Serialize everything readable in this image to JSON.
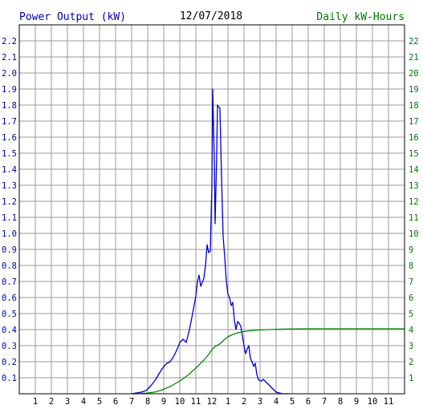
{
  "header": {
    "left_title": "Power Output (kW)",
    "center_title": "12/07/2018",
    "right_title": "Daily kW-Hours"
  },
  "colors": {
    "power": "#0000cc",
    "energy": "#008800",
    "grid": "#999999",
    "axis_text_left": "#0000aa",
    "axis_text_right": "#007700",
    "center_text": "#000000"
  },
  "chart_data": {
    "type": "line",
    "title": "12/07/2018",
    "xlabel": "",
    "ylabel": "Power Output (kW)",
    "ylabel_right": "Daily kW-Hours",
    "x_ticks": [
      "1",
      "2",
      "3",
      "4",
      "5",
      "6",
      "7",
      "8",
      "9",
      "10",
      "11",
      "12",
      "1",
      "2",
      "3",
      "4",
      "5",
      "6",
      "7",
      "8",
      "9",
      "10",
      "11"
    ],
    "xlim": [
      0,
      24
    ],
    "ylim": [
      0,
      2.3
    ],
    "ylim_right": [
      0,
      23
    ],
    "y_ticks": [
      "0.1",
      "0.2",
      "0.3",
      "0.4",
      "0.5",
      "0.6",
      "0.7",
      "0.8",
      "0.9",
      "1.0",
      "1.1",
      "1.2",
      "1.3",
      "1.4",
      "1.5",
      "1.6",
      "1.7",
      "1.8",
      "1.9",
      "2.0",
      "2.1",
      "2.2"
    ],
    "y_ticks_right": [
      "1",
      "2",
      "3",
      "4",
      "5",
      "6",
      "7",
      "8",
      "9",
      "10",
      "11",
      "12",
      "13",
      "14",
      "15",
      "16",
      "17",
      "18",
      "19",
      "20",
      "21",
      "22"
    ],
    "grid": true,
    "series": [
      {
        "axis": "left",
        "x": [
          7.0,
          7.3,
          7.6,
          7.9,
          8.2,
          8.5,
          8.8,
          9.0,
          9.2,
          9.4,
          9.6,
          9.8,
          10.0,
          10.2,
          10.4,
          10.6,
          10.8,
          11.0,
          11.1,
          11.2,
          11.3,
          11.5,
          11.6,
          11.7,
          11.8,
          11.9,
          12.0,
          12.05,
          12.15,
          12.2,
          12.3,
          12.35,
          12.4,
          12.5,
          12.6,
          12.7,
          12.8,
          12.9,
          13.0,
          13.1,
          13.2,
          13.3,
          13.4,
          13.5,
          13.6,
          13.7,
          13.8,
          13.9,
          14.0,
          14.1,
          14.2,
          14.3,
          14.4,
          14.5,
          14.6,
          14.7,
          14.8,
          14.9,
          15.0,
          15.1,
          15.2,
          15.3,
          15.4,
          15.6,
          15.8,
          16.0,
          16.2,
          16.4,
          16.6,
          16.8
        ],
        "values": [
          0,
          0.005,
          0.01,
          0.02,
          0.05,
          0.09,
          0.14,
          0.17,
          0.19,
          0.2,
          0.23,
          0.27,
          0.32,
          0.34,
          0.32,
          0.4,
          0.5,
          0.61,
          0.7,
          0.74,
          0.67,
          0.72,
          0.8,
          0.93,
          0.88,
          0.89,
          1.3,
          1.9,
          1.45,
          1.06,
          1.5,
          1.8,
          1.79,
          1.78,
          1.35,
          0.98,
          0.85,
          0.7,
          0.62,
          0.6,
          0.55,
          0.57,
          0.46,
          0.4,
          0.45,
          0.44,
          0.42,
          0.36,
          0.3,
          0.25,
          0.28,
          0.3,
          0.22,
          0.2,
          0.17,
          0.19,
          0.12,
          0.09,
          0.08,
          0.08,
          0.09,
          0.08,
          0.07,
          0.05,
          0.03,
          0.01,
          0.005,
          0,
          0,
          0
        ]
      },
      {
        "axis": "right",
        "x": [
          7.0,
          7.5,
          8.0,
          8.5,
          9.0,
          9.5,
          10.0,
          10.5,
          11.0,
          11.5,
          11.8,
          12.0,
          12.2,
          12.4,
          12.6,
          12.8,
          13.0,
          13.3,
          13.6,
          14.0,
          14.3,
          14.6,
          15.0,
          15.5,
          16.0,
          16.5,
          17.0,
          18.0,
          20.0,
          22.0,
          24.0
        ],
        "values": [
          0,
          0.01,
          0.04,
          0.12,
          0.28,
          0.5,
          0.8,
          1.15,
          1.6,
          2.1,
          2.45,
          2.75,
          2.95,
          3.05,
          3.2,
          3.4,
          3.55,
          3.7,
          3.8,
          3.88,
          3.92,
          3.95,
          3.98,
          4.0,
          4.02,
          4.03,
          4.04,
          4.05,
          4.05,
          4.05,
          4.05
        ]
      }
    ]
  }
}
